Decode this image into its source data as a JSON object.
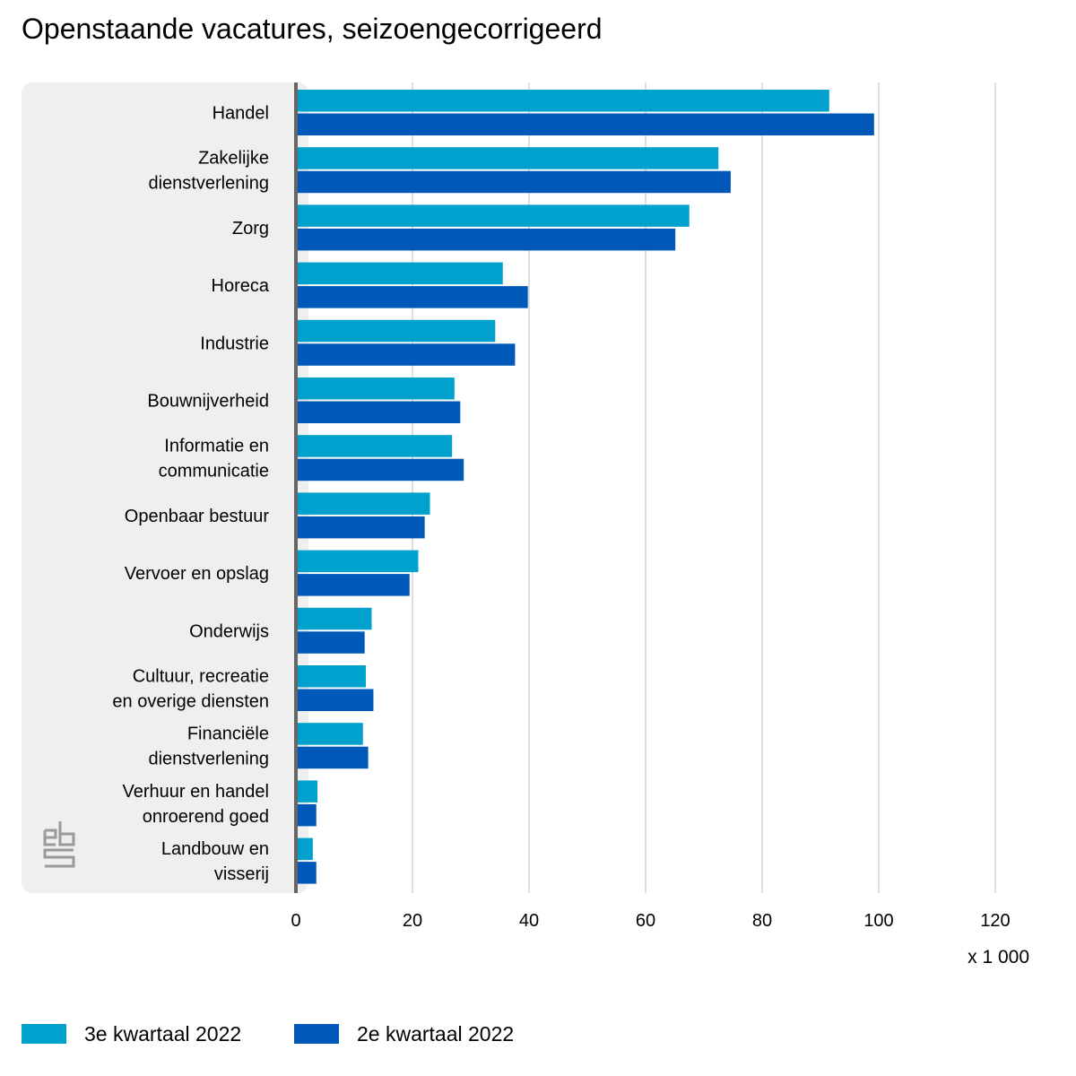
{
  "title": "Openstaande vacatures, seizoengecorrigeerd",
  "unit_label": "x 1 000",
  "logo": {
    "icon": "cbs-logo-icon"
  },
  "colors": {
    "series_q3": "#00a1cd",
    "series_q2": "#0058b8",
    "panel_background": "#efefef",
    "gridline": "#c8c8c8",
    "axis": "#666666"
  },
  "chart_data": {
    "type": "bar",
    "orientation": "horizontal",
    "title": "Openstaande vacatures, seizoengecorrigeerd",
    "xlabel": "x 1 000",
    "ylabel": "",
    "xlim": [
      0,
      120
    ],
    "xticks": [
      0,
      20,
      40,
      60,
      80,
      100,
      120
    ],
    "grid": true,
    "legend_position": "bottom",
    "categories": [
      [
        "Handel"
      ],
      [
        "Zakelijke",
        "dienstverlening"
      ],
      [
        "Zorg"
      ],
      [
        "Horeca"
      ],
      [
        "Industrie"
      ],
      [
        "Bouwnijverheid"
      ],
      [
        "Informatie en",
        "communicatie"
      ],
      [
        "Openbaar bestuur"
      ],
      [
        "Vervoer en opslag"
      ],
      [
        "Onderwijs"
      ],
      [
        "Cultuur, recreatie",
        "en overige diensten"
      ],
      [
        "Financiële",
        "dienstverlening"
      ],
      [
        "Verhuur en handel",
        "onroerend goed"
      ],
      [
        "Landbouw en",
        "visserij"
      ]
    ],
    "series": [
      {
        "name": "3e kwartaal 2022",
        "color": "#00a1cd",
        "values": [
          91.5,
          72.5,
          67.5,
          35.5,
          34.2,
          27.2,
          26.8,
          23.0,
          21.0,
          13.0,
          12.0,
          11.5,
          3.7,
          2.9
        ]
      },
      {
        "name": "2e kwartaal 2022",
        "color": "#0058b8",
        "values": [
          99.2,
          74.6,
          65.1,
          39.8,
          37.6,
          28.2,
          28.8,
          22.1,
          19.5,
          11.8,
          13.3,
          12.4,
          3.5,
          3.5
        ]
      }
    ]
  }
}
